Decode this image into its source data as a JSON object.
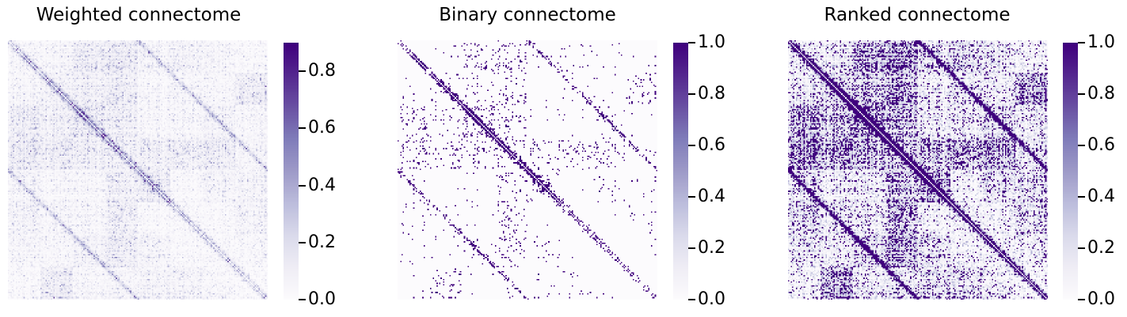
{
  "chart_data": [
    {
      "type": "heatmap",
      "title": "Weighted connectome",
      "colormap": "Purples",
      "colorbar": {
        "min": 0.0,
        "max": 0.9,
        "ticks": [
          "0.0",
          "0.2",
          "0.4",
          "0.6",
          "0.8"
        ]
      },
      "matrix_size": 200,
      "xlabel": "",
      "ylabel": ""
    },
    {
      "type": "heatmap",
      "title": "Binary connectome",
      "colormap": "Purples",
      "colorbar": {
        "min": 0.0,
        "max": 1.0,
        "ticks": [
          "0.0",
          "0.2",
          "0.4",
          "0.6",
          "0.8",
          "1.0"
        ]
      },
      "matrix_size": 200,
      "xlabel": "",
      "ylabel": ""
    },
    {
      "type": "heatmap",
      "title": "Ranked connectome",
      "colormap": "Purples",
      "colorbar": {
        "min": 0.0,
        "max": 1.0,
        "ticks": [
          "0.0",
          "0.2",
          "0.4",
          "0.6",
          "0.8",
          "1.0"
        ]
      },
      "matrix_size": 200,
      "xlabel": "",
      "ylabel": ""
    }
  ],
  "colors": {
    "cmap_low": "#fcfbfd",
    "cmap_mid": "#9e9ac8",
    "cmap_high": "#3f007d"
  }
}
